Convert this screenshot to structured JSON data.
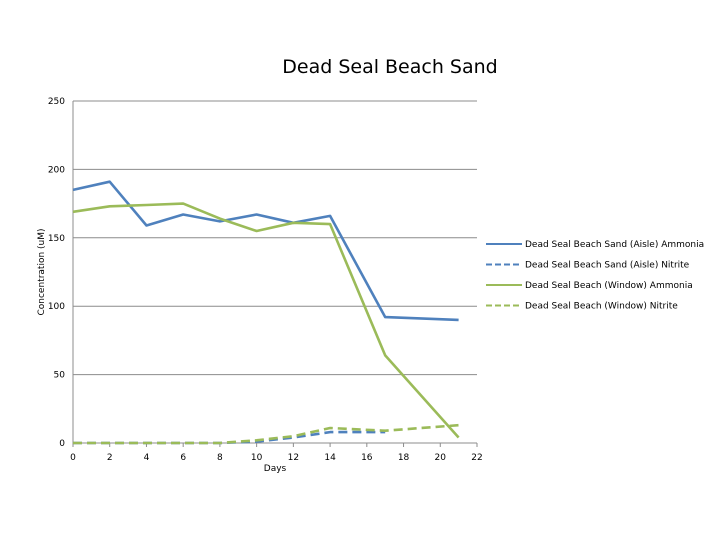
{
  "chart_data": {
    "type": "line",
    "title": "Dead Seal Beach Sand",
    "xlabel": "Days",
    "ylabel": "Concentration (uM)",
    "xlim": [
      0,
      22
    ],
    "ylim": [
      0,
      250
    ],
    "xticks": [
      0,
      2,
      4,
      6,
      8,
      10,
      12,
      14,
      16,
      18,
      20,
      22
    ],
    "yticks": [
      0,
      50,
      100,
      150,
      200,
      250
    ],
    "grid": "horizontal",
    "legend_position": "right",
    "series": [
      {
        "name": "Dead Seal Beach Sand (Aisle) Ammonia",
        "color": "#4f81bd",
        "dashed": false,
        "x": [
          0,
          2,
          4,
          6,
          8,
          10,
          12,
          14,
          17,
          21
        ],
        "y": [
          185,
          191,
          159,
          167,
          162,
          167,
          161,
          166,
          92,
          90
        ]
      },
      {
        "name": "Dead Seal Beach Sand (Aisle) Nitrite",
        "color": "#4f81bd",
        "dashed": true,
        "x": [
          0,
          2,
          4,
          6,
          8,
          10,
          12,
          14,
          17
        ],
        "y": [
          0,
          0,
          0,
          0,
          0,
          1,
          4,
          8,
          8
        ]
      },
      {
        "name": "Dead Seal Beach (Window) Ammonia",
        "color": "#9bbb59",
        "dashed": false,
        "x": [
          0,
          2,
          4,
          6,
          8,
          10,
          12,
          14,
          17,
          21
        ],
        "y": [
          169,
          173,
          174,
          175,
          164,
          155,
          161,
          160,
          64,
          4
        ]
      },
      {
        "name": "Dead Seal Beach (Window) Nitrite",
        "color": "#9bbb59",
        "dashed": true,
        "x": [
          0,
          2,
          4,
          6,
          8,
          10,
          12,
          14,
          17,
          21
        ],
        "y": [
          0,
          0,
          0,
          0,
          0,
          2,
          5,
          11,
          9,
          13
        ]
      }
    ]
  }
}
